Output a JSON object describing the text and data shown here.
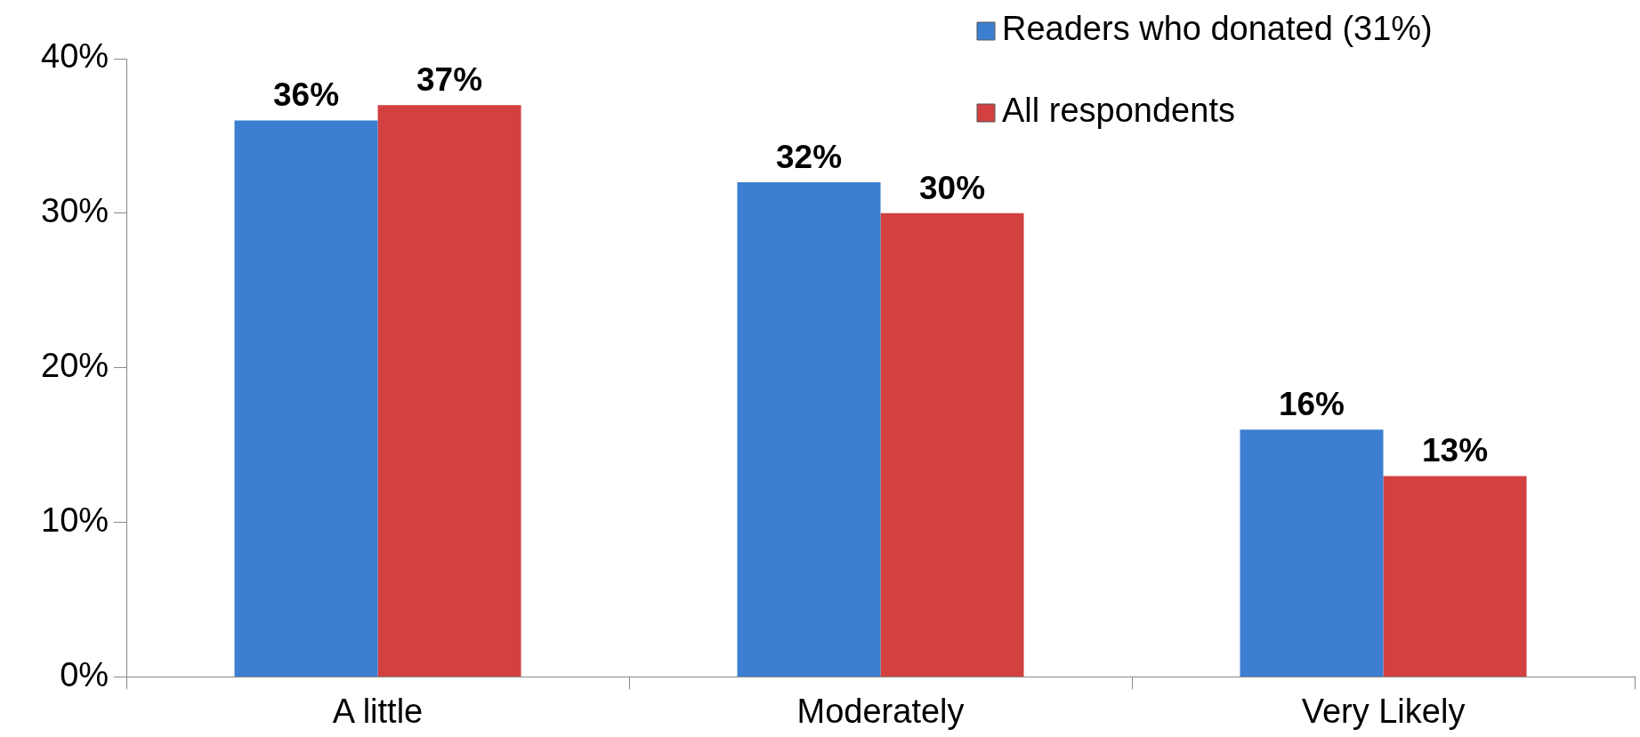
{
  "chart_data": {
    "type": "bar",
    "categories": [
      "A little",
      "Moderately",
      "Very Likely"
    ],
    "series": [
      {
        "name": "Readers who donated (31%)",
        "color": "#3c7fd1",
        "values": [
          36,
          32,
          16
        ],
        "value_labels": [
          "36%",
          "32%",
          "16%"
        ]
      },
      {
        "name": "All respondents",
        "color": "#d24040",
        "values": [
          37,
          30,
          13
        ],
        "value_labels": [
          "37%",
          "30%",
          "13%"
        ]
      }
    ],
    "ylim": [
      0,
      40
    ],
    "yticks": [
      {
        "value": 0,
        "label": "0%"
      },
      {
        "value": 10,
        "label": "10%"
      },
      {
        "value": 20,
        "label": "20%"
      },
      {
        "value": 30,
        "label": "30%"
      },
      {
        "value": 40,
        "label": "40%"
      }
    ],
    "legend": "top right",
    "grid": false
  }
}
